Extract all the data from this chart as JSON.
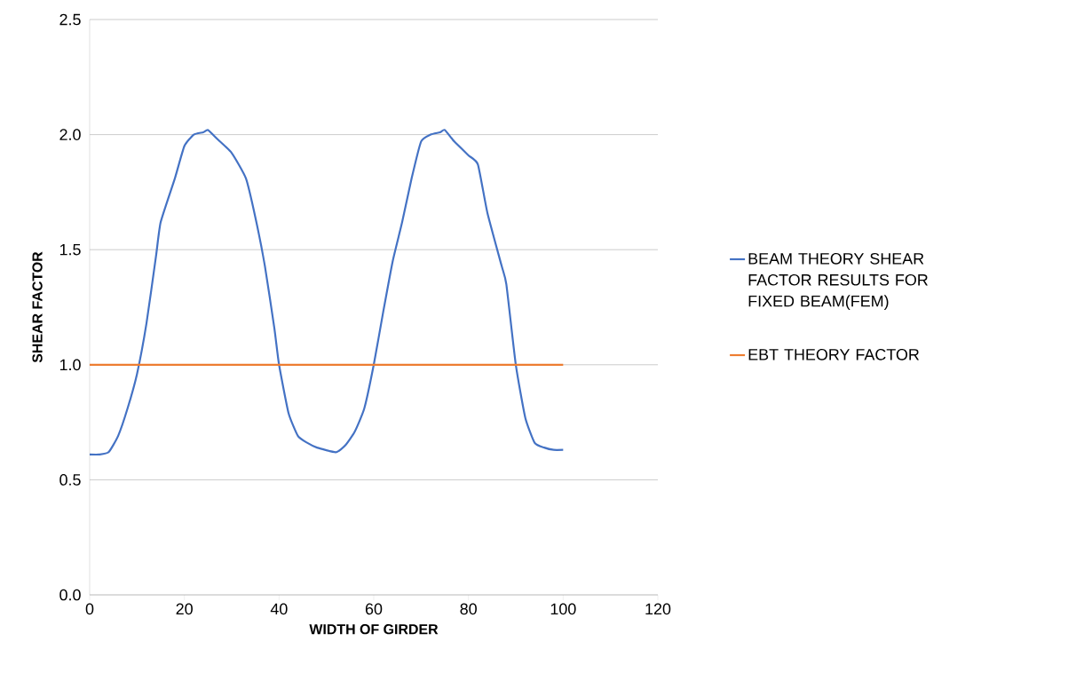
{
  "chart_data": {
    "type": "line",
    "xlabel": "WIDTH OF GIRDER",
    "ylabel": "SHEAR FACTOR",
    "xlim": [
      0,
      120
    ],
    "xticks": [
      0,
      20,
      40,
      60,
      80,
      100,
      120
    ],
    "ylim": [
      0,
      2.5
    ],
    "yticks": [
      {
        "value": 0,
        "label": "0.0"
      },
      {
        "value": 0.5,
        "label": "0.5"
      },
      {
        "value": 1,
        "label": "1.0"
      },
      {
        "value": 1.5,
        "label": "1.5"
      },
      {
        "value": 2,
        "label": "2.0"
      },
      {
        "value": 2.5,
        "label": "2.5"
      }
    ],
    "grid": "y",
    "legend": "right",
    "marker": "none",
    "line_style": "solid",
    "series": [
      {
        "name": "BEAM THEORY SHEAR FACTOR RESULTS FOR FIXED BEAM(FEM)",
        "color": "#4472c4",
        "x": [
          0,
          2,
          4,
          6,
          8,
          10,
          12,
          14,
          15,
          18,
          20,
          22,
          24,
          25,
          27,
          30,
          33,
          35,
          37,
          39,
          40,
          42,
          44,
          46,
          48,
          52,
          54,
          56,
          58,
          60,
          62,
          64,
          66,
          68,
          70,
          72,
          74,
          75,
          77,
          80,
          82,
          84,
          87,
          88,
          90,
          92,
          94,
          96,
          98,
          100
        ],
        "values": [
          0.61,
          0.61,
          0.62,
          0.69,
          0.81,
          0.96,
          1.18,
          1.47,
          1.62,
          1.81,
          1.95,
          2.0,
          2.01,
          2.02,
          1.98,
          1.92,
          1.81,
          1.64,
          1.43,
          1.16,
          1.0,
          0.79,
          0.69,
          0.66,
          0.64,
          0.62,
          0.65,
          0.71,
          0.81,
          1.0,
          1.23,
          1.45,
          1.62,
          1.81,
          1.97,
          2.0,
          2.01,
          2.02,
          1.97,
          1.91,
          1.87,
          1.66,
          1.43,
          1.35,
          1.0,
          0.77,
          0.66,
          0.64,
          0.63,
          0.63
        ]
      },
      {
        "name": "EBT THEORY FACTOR",
        "color": "#ed7d31",
        "x": [
          0,
          100
        ],
        "values": [
          1,
          1
        ]
      }
    ]
  }
}
